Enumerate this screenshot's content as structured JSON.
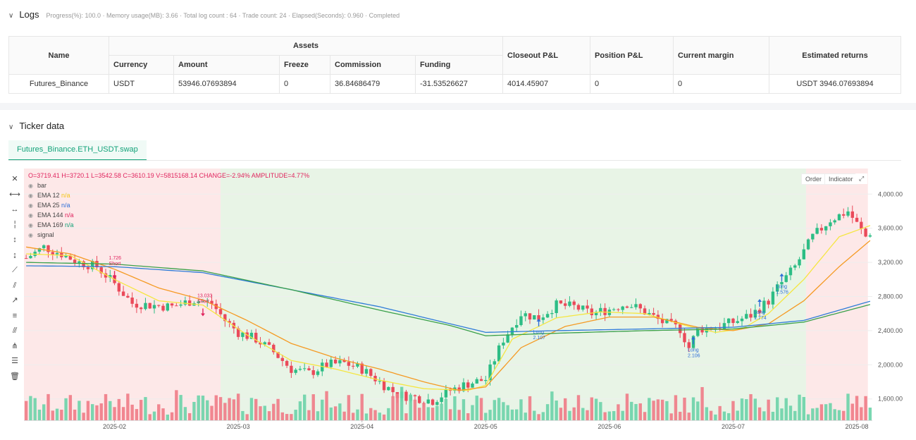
{
  "logs": {
    "title": "Logs",
    "progress": "Progress(%): 100.0 · Memory usage(MB): 3.66 · Total log count : 64 · Trade count:  24 · Elapsed(Seconds): 0.960 · Completed",
    "table": {
      "headers": {
        "name": "Name",
        "assets": "Assets",
        "currency": "Currency",
        "amount": "Amount",
        "freeze": "Freeze",
        "commission": "Commission",
        "funding": "Funding",
        "closeout": "Closeout P&L",
        "position": "Position P&L",
        "margin": "Current margin",
        "returns": "Estimated returns"
      },
      "row": {
        "name": "Futures_Binance",
        "currency": "USDT",
        "amount": "53946.07693894",
        "freeze": "0",
        "commission": "36.84686479",
        "funding": "-31.53526627",
        "closeout": "4014.45907",
        "position": "0",
        "margin": "0",
        "returns": "USDT 3946.07693894"
      }
    }
  },
  "ticker": {
    "title": "Ticker data",
    "tab": "Futures_Binance.ETH_USDT.swap",
    "buttons": {
      "order": "Order",
      "indicator": "Indicator"
    },
    "ohlc": {
      "o": "O=3719.41",
      "h": "H=3720.1",
      "l": "L=3542.58",
      "c": "C=3610.19",
      "v": "V=5815168.14",
      "change": "CHANGE=-2.94%",
      "amplitude": "AMPLITUDE=4.77%"
    },
    "legend": [
      {
        "label": "bar",
        "value": "",
        "color": "#888888"
      },
      {
        "label": "EMA 12",
        "value": "n/a",
        "color": "#f5c518"
      },
      {
        "label": "EMA 25",
        "value": "n/a",
        "color": "#2e6fd8"
      },
      {
        "label": "EMA 144",
        "value": "n/a",
        "color": "#e0245e"
      },
      {
        "label": "EMA 169",
        "value": "n/a",
        "color": "#13a37a"
      },
      {
        "label": "signal",
        "value": "",
        "color": "#888888"
      }
    ],
    "toolbar": [
      "crosshair-icon",
      "horizontal-line-icon",
      "ray-icon",
      "vertical-line-icon",
      "vertical-segment-icon",
      "price-range-icon",
      "trend-line-icon",
      "parallel-line-icon",
      "extended-line-icon",
      "fib-icon",
      "channel-icon",
      "pitchfork-icon",
      "measure-icon",
      "trash-icon"
    ],
    "toolbar_glyphs": [
      "✕",
      "⟷",
      "↔",
      "╎",
      "↕",
      "↨",
      "⟋",
      "⫽",
      "↗",
      "≡",
      "⫻",
      "⋔",
      "☰",
      "🗑"
    ]
  },
  "chart_data": {
    "type": "candlestick",
    "symbol": "ETH_USDT",
    "ylim": [
      1350,
      4300
    ],
    "y_ticks": [
      "4,000.00",
      "3,600.00",
      "3,200.00",
      "2,800.00",
      "2,400.00",
      "2,000.00",
      "1,600.00"
    ],
    "y_tick_values": [
      4000,
      3600,
      3200,
      2800,
      2400,
      2000,
      1600
    ],
    "x_ticks": [
      "2025-02",
      "2025-03",
      "2025-04",
      "2025-05",
      "2025-06",
      "2025-07",
      "2025-08"
    ],
    "x_tick_days": [
      20,
      48,
      76,
      104,
      132,
      160,
      188
    ],
    "day_count": 192,
    "backgrounds": [
      {
        "from_day": 0,
        "to_day": 44.5,
        "color": "#fde8e8"
      },
      {
        "from_day": 44.5,
        "to_day": 177,
        "color": "#e8f4e6"
      },
      {
        "from_day": 177,
        "to_day": 191,
        "color": "#fde8e8"
      }
    ],
    "anchors": [
      [
        0,
        3250
      ],
      [
        4,
        3380
      ],
      [
        8,
        3300
      ],
      [
        12,
        3200
      ],
      [
        16,
        3150
      ],
      [
        20,
        2950
      ],
      [
        24,
        2720
      ],
      [
        28,
        2700
      ],
      [
        33,
        2680
      ],
      [
        38,
        2760
      ],
      [
        42,
        2720
      ],
      [
        45,
        2520
      ],
      [
        48,
        2380
      ],
      [
        52,
        2300
      ],
      [
        56,
        2150
      ],
      [
        60,
        1950
      ],
      [
        64,
        1900
      ],
      [
        68,
        2000
      ],
      [
        72,
        2020
      ],
      [
        76,
        1950
      ],
      [
        80,
        1800
      ],
      [
        84,
        1650
      ],
      [
        88,
        1620
      ],
      [
        92,
        1580
      ],
      [
        96,
        1700
      ],
      [
        100,
        1780
      ],
      [
        104,
        1830
      ],
      [
        108,
        2300
      ],
      [
        112,
        2600
      ],
      [
        116,
        2550
      ],
      [
        120,
        2700
      ],
      [
        124,
        2680
      ],
      [
        128,
        2600
      ],
      [
        132,
        2650
      ],
      [
        136,
        2720
      ],
      [
        140,
        2620
      ],
      [
        144,
        2500
      ],
      [
        148,
        2420
      ],
      [
        150,
        2200
      ],
      [
        152,
        2420
      ],
      [
        156,
        2440
      ],
      [
        160,
        2500
      ],
      [
        164,
        2580
      ],
      [
        168,
        2750
      ],
      [
        170,
        2900
      ],
      [
        174,
        3150
      ],
      [
        178,
        3500
      ],
      [
        182,
        3700
      ],
      [
        186,
        3800
      ],
      [
        190,
        3500
      ],
      [
        192,
        3600
      ]
    ],
    "ema_lines": [
      {
        "name": "EMA 12",
        "color": "#f5e642",
        "points": [
          [
            0,
            3300
          ],
          [
            10,
            3280
          ],
          [
            20,
            3000
          ],
          [
            30,
            2750
          ],
          [
            40,
            2700
          ],
          [
            50,
            2350
          ],
          [
            60,
            2050
          ],
          [
            70,
            1950
          ],
          [
            80,
            1820
          ],
          [
            90,
            1720
          ],
          [
            100,
            1700
          ],
          [
            104,
            1760
          ],
          [
            110,
            2300
          ],
          [
            120,
            2550
          ],
          [
            130,
            2620
          ],
          [
            140,
            2600
          ],
          [
            150,
            2450
          ],
          [
            156,
            2380
          ],
          [
            162,
            2420
          ],
          [
            168,
            2600
          ],
          [
            176,
            3000
          ],
          [
            184,
            3500
          ],
          [
            192,
            3650
          ]
        ]
      },
      {
        "name": "EMA 25",
        "color": "#f59a23",
        "points": [
          [
            0,
            3380
          ],
          [
            10,
            3300
          ],
          [
            20,
            3120
          ],
          [
            30,
            2900
          ],
          [
            40,
            2760
          ],
          [
            50,
            2520
          ],
          [
            60,
            2250
          ],
          [
            70,
            2080
          ],
          [
            80,
            1950
          ],
          [
            90,
            1800
          ],
          [
            98,
            1700
          ],
          [
            104,
            1740
          ],
          [
            112,
            2200
          ],
          [
            122,
            2450
          ],
          [
            132,
            2560
          ],
          [
            142,
            2560
          ],
          [
            152,
            2440
          ],
          [
            160,
            2400
          ],
          [
            168,
            2480
          ],
          [
            176,
            2750
          ],
          [
            184,
            3150
          ],
          [
            192,
            3500
          ]
        ]
      },
      {
        "name": "EMA 144",
        "color": "#2e7bd8",
        "points": [
          [
            0,
            3160
          ],
          [
            20,
            3150
          ],
          [
            40,
            3080
          ],
          [
            60,
            2880
          ],
          [
            80,
            2680
          ],
          [
            96,
            2480
          ],
          [
            104,
            2380
          ],
          [
            120,
            2400
          ],
          [
            140,
            2420
          ],
          [
            160,
            2440
          ],
          [
            176,
            2520
          ],
          [
            192,
            2760
          ]
        ]
      },
      {
        "name": "EMA 169",
        "color": "#3aa04a",
        "points": [
          [
            0,
            3200
          ],
          [
            20,
            3180
          ],
          [
            40,
            3100
          ],
          [
            60,
            2880
          ],
          [
            80,
            2640
          ],
          [
            96,
            2460
          ],
          [
            104,
            2340
          ],
          [
            120,
            2370
          ],
          [
            140,
            2400
          ],
          [
            160,
            2420
          ],
          [
            176,
            2500
          ],
          [
            192,
            2720
          ]
        ]
      }
    ],
    "signals": [
      {
        "day": 20,
        "price": 3100,
        "label": "1.726",
        "label2": "Short",
        "dir": "down"
      },
      {
        "day": 40,
        "price": 2660,
        "label": "13.033",
        "label2": "Short",
        "dir": "down"
      },
      {
        "day": 116,
        "price": 2450,
        "label": "Long",
        "label2": "2.107",
        "dir": "up"
      },
      {
        "day": 151,
        "price": 2240,
        "label": "Long",
        "label2": "2.106",
        "dir": "up"
      },
      {
        "day": 166,
        "price": 2680,
        "label": "Long",
        "label2": "1.774",
        "dir": "up"
      },
      {
        "day": 171,
        "price": 2980,
        "label": "Long",
        "label2": "1.576",
        "dir": "up"
      }
    ]
  }
}
